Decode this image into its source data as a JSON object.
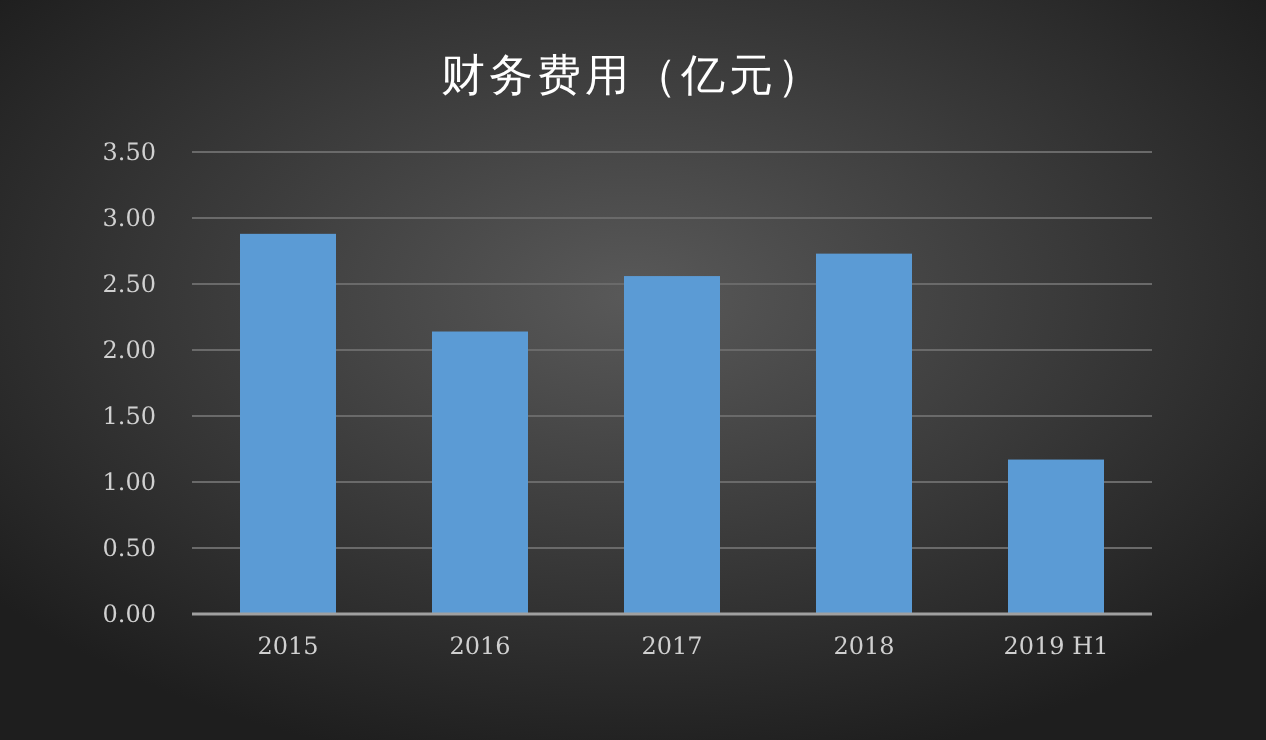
{
  "chart_data": {
    "type": "bar",
    "title": "财务费用（亿元）",
    "categories": [
      "2015",
      "2016",
      "2017",
      "2018",
      "2019 H1"
    ],
    "values": [
      2.88,
      2.14,
      2.56,
      2.73,
      1.17
    ],
    "color": "#5b9bd5",
    "ylim": [
      0,
      3.5
    ],
    "yticks": [
      {
        "value": 0,
        "label": "0.00"
      },
      {
        "value": 0.5,
        "label": "0.50"
      },
      {
        "value": 1,
        "label": "1.00"
      },
      {
        "value": 1.5,
        "label": "1.50"
      },
      {
        "value": 2,
        "label": "2.00"
      },
      {
        "value": 2.5,
        "label": "2.50"
      },
      {
        "value": 3,
        "label": "3.00"
      },
      {
        "value": 3.5,
        "label": "3.50"
      }
    ],
    "grid": "y"
  }
}
